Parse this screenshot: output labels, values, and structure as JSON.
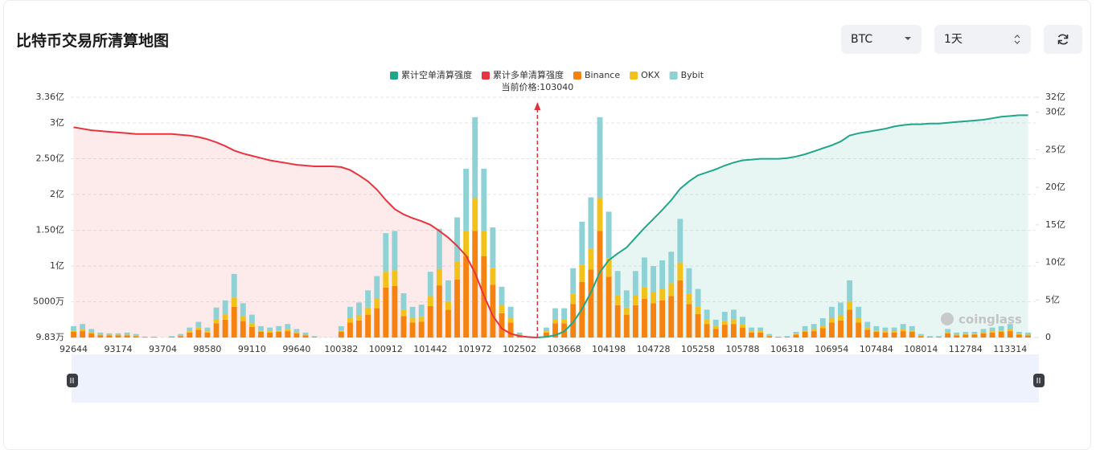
{
  "page": {
    "title": "比特币交易所清算地图",
    "coin_select": "BTC",
    "range_select": "1天",
    "watermark": "coinglass"
  },
  "chart_data": {
    "type": "bar",
    "annotation": "当前价格:103040",
    "categories": [
      "92644",
      null,
      null,
      null,
      null,
      "93174",
      null,
      null,
      null,
      null,
      "93704",
      null,
      null,
      null,
      null,
      "98580",
      null,
      null,
      null,
      null,
      "99110",
      null,
      null,
      null,
      null,
      "99640",
      null,
      null,
      null,
      null,
      "100382",
      null,
      null,
      null,
      null,
      "100912",
      null,
      null,
      null,
      null,
      "101442",
      null,
      null,
      null,
      null,
      "101972",
      null,
      null,
      null,
      null,
      "102502",
      null,
      null,
      null,
      null,
      "103668",
      null,
      null,
      null,
      null,
      "104198",
      null,
      null,
      null,
      null,
      "104728",
      null,
      null,
      null,
      null,
      "105258",
      null,
      null,
      null,
      null,
      "105788",
      null,
      null,
      null,
      null,
      "106318",
      null,
      null,
      null,
      null,
      "106954",
      null,
      null,
      null,
      null,
      "107484",
      null,
      null,
      null,
      null,
      "108014",
      null,
      null,
      null,
      null,
      "112784",
      null,
      null,
      null,
      null,
      "113314",
      null,
      null
    ],
    "ylim": [
      98300,
      336000000
    ],
    "yticks": [
      {
        "value": 98300,
        "label": "9.83万"
      },
      {
        "value": 50000000,
        "label": "5000万"
      },
      {
        "value": 100000000,
        "label": "1亿"
      },
      {
        "value": 150000000,
        "label": "1.50亿"
      },
      {
        "value": 200000000,
        "label": "2亿"
      },
      {
        "value": 250000000,
        "label": "2.50亿"
      },
      {
        "value": 300000000,
        "label": "3亿"
      },
      {
        "value": 336000000,
        "label": "3.36亿"
      }
    ],
    "y2lim": [
      0,
      3200000000
    ],
    "y2ticks": [
      0,
      {
        "value": 500000000,
        "label": "5亿"
      },
      {
        "value": 1000000000,
        "label": "10亿"
      },
      {
        "value": 1500000000,
        "label": "15亿"
      },
      {
        "value": 2000000000,
        "label": "20亿"
      },
      {
        "value": 2500000000,
        "label": "25亿"
      },
      {
        "value": 3000000000,
        "label": "30亿"
      },
      {
        "value": 3200000000,
        "label": "32亿"
      }
    ],
    "grid": true,
    "series": [
      {
        "name": "累计空单清算强度",
        "color": "#20a68b",
        "axis": "y2",
        "type": "area",
        "values": [
          null,
          null,
          null,
          null,
          null,
          null,
          null,
          null,
          null,
          null,
          null,
          null,
          null,
          null,
          null,
          null,
          null,
          null,
          null,
          null,
          null,
          null,
          null,
          null,
          null,
          null,
          null,
          null,
          null,
          null,
          null,
          null,
          null,
          null,
          null,
          null,
          null,
          null,
          null,
          null,
          null,
          null,
          null,
          null,
          null,
          null,
          null,
          null,
          null,
          null,
          null,
          null,
          0,
          10000000.0,
          30000000.0,
          80000000.0,
          200000000.0,
          380000000.0,
          600000000.0,
          870000000.0,
          1030000000.0,
          1120000000.0,
          1200000000.0,
          1330000000.0,
          1460000000.0,
          1580000000.0,
          1700000000.0,
          1830000000.0,
          1980000000.0,
          2080000000.0,
          2160000000.0,
          2200000000.0,
          2240000000.0,
          2290000000.0,
          2330000000.0,
          2360000000.0,
          2370000000.0,
          2380000000.0,
          2380000000.0,
          2380000000.0,
          2390000000.0,
          2410000000.0,
          2440000000.0,
          2480000000.0,
          2520000000.0,
          2560000000.0,
          2610000000.0,
          2690000000.0,
          2720000000.0,
          2740000000.0,
          2760000000.0,
          2780000000.0,
          2810000000.0,
          2830000000.0,
          2840000000.0,
          2840000000.0,
          2850000000.0,
          2850000000.0,
          2860000000.0,
          2870000000.0,
          2880000000.0,
          2890000000.0,
          2900000000.0,
          2920000000.0,
          2940000000.0,
          2950000000.0,
          2960000000.0,
          2960000000.0
        ]
      },
      {
        "name": "累计多单清算强度",
        "color": "#e8343f",
        "axis": "y2",
        "type": "area",
        "values": [
          2800000000.0,
          2780000000.0,
          2760000000.0,
          2750000000.0,
          2740000000.0,
          2730000000.0,
          2720000000.0,
          2710000000.0,
          2710000000.0,
          2710000000.0,
          2710000000.0,
          2710000000.0,
          2700000000.0,
          2690000000.0,
          2670000000.0,
          2640000000.0,
          2600000000.0,
          2550000000.0,
          2490000000.0,
          2450000000.0,
          2420000000.0,
          2390000000.0,
          2360000000.0,
          2340000000.0,
          2320000000.0,
          2300000000.0,
          2290000000.0,
          2280000000.0,
          2280000000.0,
          2280000000.0,
          2270000000.0,
          2230000000.0,
          2160000000.0,
          2080000000.0,
          1970000000.0,
          1830000000.0,
          1710000000.0,
          1640000000.0,
          1590000000.0,
          1550000000.0,
          1500000000.0,
          1420000000.0,
          1330000000.0,
          1220000000.0,
          1090000000.0,
          860000000.0,
          560000000.0,
          290000000.0,
          120000000.0,
          50000000.0,
          20000000.0,
          5000000.0,
          0,
          null,
          null,
          null,
          null,
          null,
          null,
          null,
          null,
          null,
          null,
          null,
          null,
          null,
          null,
          null,
          null,
          null,
          null,
          null,
          null,
          null,
          null,
          null,
          null,
          null,
          null,
          null,
          null,
          null,
          null,
          null,
          null,
          null,
          null,
          null,
          null,
          null,
          null,
          null,
          null,
          null,
          null,
          null,
          null,
          null,
          null,
          null,
          null,
          null,
          null,
          null,
          null,
          null,
          null,
          null
        ]
      },
      {
        "name": "Binance",
        "color": "#f6820f",
        "values": [
          8000000.0,
          9000000.0,
          6000000.0,
          3000000.0,
          3000000.0,
          3000000.0,
          3000000.0,
          2000000.0,
          1000000.0,
          1000000.0,
          0,
          1000000.0,
          2000000.0,
          7000000.0,
          11000000.0,
          7000000.0,
          20000000.0,
          25000000.0,
          43000000.0,
          23000000.0,
          15000000.0,
          8000000.0,
          7000000.0,
          8000000.0,
          9000000.0,
          6000000.0,
          3000000.0,
          1000000.0,
          0,
          0,
          8000000.0,
          21000000.0,
          24000000.0,
          32000000.0,
          41000000.0,
          70000000.0,
          72000000.0,
          30000000.0,
          21000000.0,
          22000000.0,
          44000000.0,
          73000000.0,
          39000000.0,
          81000000.0,
          114000000.0,
          149000000.0,
          114000000.0,
          74000000.0,
          34000000.0,
          21000000.0,
          3000000.0,
          1000000.0,
          0,
          7000000.0,
          20000000.0,
          20000000.0,
          47000000.0,
          78000000.0,
          95000000.0,
          149000000.0,
          85000000.0,
          45000000.0,
          32000000.0,
          45000000.0,
          54000000.0,
          48000000.0,
          52000000.0,
          58000000.0,
          80000000.0,
          47000000.0,
          33000000.0,
          19000000.0,
          12000000.0,
          18000000.0,
          19000000.0,
          14000000.0,
          7000000.0,
          7000000.0,
          2000000.0,
          1000000.0,
          1000000.0,
          4000000.0,
          8000000.0,
          9000000.0,
          13000000.0,
          21000000.0,
          24000000.0,
          39000000.0,
          21000000.0,
          11000000.0,
          8000000.0,
          7000000.0,
          7000000.0,
          9000000.0,
          8000000.0,
          2000000.0,
          1000000.0,
          1000000.0,
          6000000.0,
          3000000.0,
          4000000.0,
          4000000.0,
          6000000.0,
          7000000.0,
          8000000.0,
          9000000.0,
          4000000.0,
          3000000.0
        ]
      },
      {
        "name": "OKX",
        "color": "#f2c21a",
        "values": [
          2000000.0,
          3000000.0,
          2000000.0,
          1000000.0,
          1000000.0,
          1000000.0,
          1000000.0,
          1000000.0,
          0,
          0,
          0,
          0,
          1000000.0,
          2000000.0,
          3000000.0,
          2000000.0,
          6000000.0,
          8000000.0,
          13000000.0,
          7000000.0,
          5000000.0,
          2000000.0,
          2000000.0,
          2000000.0,
          3000000.0,
          2000000.0,
          1000000.0,
          0,
          0,
          0,
          2000000.0,
          6000000.0,
          7000000.0,
          10000000.0,
          13000000.0,
          22000000.0,
          22000000.0,
          9000000.0,
          6000000.0,
          7000000.0,
          14000000.0,
          23000000.0,
          12000000.0,
          25000000.0,
          35000000.0,
          46000000.0,
          35000000.0,
          23000000.0,
          11000000.0,
          6000000.0,
          1000000.0,
          0,
          0,
          2000000.0,
          6000000.0,
          6000000.0,
          14000000.0,
          24000000.0,
          29000000.0,
          46000000.0,
          26000000.0,
          14000000.0,
          10000000.0,
          14000000.0,
          17000000.0,
          15000000.0,
          16000000.0,
          18000000.0,
          25000000.0,
          14000000.0,
          10000000.0,
          6000000.0,
          4000000.0,
          5000000.0,
          6000000.0,
          4000000.0,
          2000000.0,
          2000000.0,
          1000000.0,
          0,
          0,
          1000000.0,
          2000000.0,
          3000000.0,
          4000000.0,
          6000000.0,
          7000000.0,
          12000000.0,
          6000000.0,
          3000000.0,
          2000000.0,
          2000000.0,
          2000000.0,
          3000000.0,
          2000000.0,
          1000000.0,
          0,
          0,
          2000000.0,
          1000000.0,
          1000000.0,
          1000000.0,
          2000000.0,
          2000000.0,
          2000000.0,
          3000000.0,
          1000000.0,
          1000000.0
        ]
      },
      {
        "name": "Bybit",
        "color": "#8fd2d6",
        "values": [
          6000000.0,
          7000000.0,
          4000000.0,
          3000000.0,
          2000000.0,
          2000000.0,
          3000000.0,
          2000000.0,
          0,
          0,
          0,
          1000000.0,
          2000000.0,
          5000000.0,
          8000000.0,
          5000000.0,
          16000000.0,
          19000000.0,
          33000000.0,
          18000000.0,
          12000000.0,
          6000000.0,
          5000000.0,
          6000000.0,
          7000000.0,
          4000000.0,
          3000000.0,
          1000000.0,
          0,
          0,
          6000000.0,
          16000000.0,
          18000000.0,
          24000000.0,
          32000000.0,
          54000000.0,
          55000000.0,
          23000000.0,
          16000000.0,
          17000000.0,
          34000000.0,
          56000000.0,
          29000000.0,
          62000000.0,
          87000000.0,
          113000000.0,
          87000000.0,
          57000000.0,
          26000000.0,
          16000000.0,
          3000000.0,
          1000000.0,
          0,
          5000000.0,
          15000000.0,
          15000000.0,
          36000000.0,
          60000000.0,
          72000000.0,
          113000000.0,
          65000000.0,
          34000000.0,
          24000000.0,
          34000000.0,
          41000000.0,
          37000000.0,
          40000000.0,
          44000000.0,
          61000000.0,
          36000000.0,
          25000000.0,
          14000000.0,
          9000000.0,
          13000000.0,
          14000000.0,
          11000000.0,
          5000000.0,
          5000000.0,
          2000000.0,
          0,
          1000000.0,
          3000000.0,
          6000000.0,
          7000000.0,
          10000000.0,
          16000000.0,
          18000000.0,
          29000000.0,
          16000000.0,
          8000000.0,
          6000000.0,
          5000000.0,
          5000000.0,
          7000000.0,
          6000000.0,
          2000000.0,
          1000000.0,
          1000000.0,
          4000000.0,
          3000000.0,
          3000000.0,
          3000000.0,
          4000000.0,
          5000000.0,
          6000000.0,
          7000000.0,
          3000000.0,
          3000000.0
        ]
      }
    ]
  }
}
